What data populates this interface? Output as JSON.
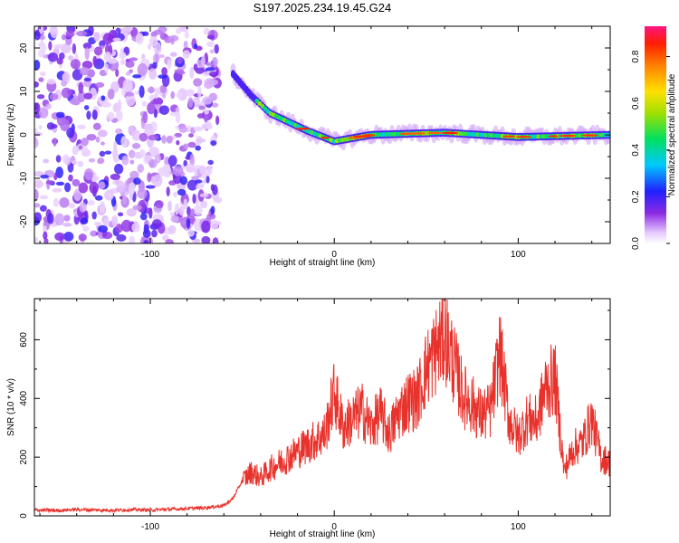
{
  "title": "S197.2025.234.19.45.G24",
  "colors": {
    "snr_line": "#e8322c",
    "axis": "#000000",
    "background": "#ffffff"
  },
  "chart_data": [
    {
      "type": "heatmap",
      "name": "spectrogram",
      "xlabel": "Height of straight line (km)",
      "ylabel": "Frequency (Hz)",
      "xlim": [
        -163,
        150
      ],
      "ylim": [
        -25,
        25
      ],
      "xticks": [
        -100,
        0,
        100
      ],
      "yticks": [
        -20,
        -10,
        0,
        10,
        20
      ],
      "xtick_labels": [
        "-100",
        "0",
        "100"
      ],
      "ytick_labels": [
        "-20",
        "-10",
        "0",
        "10",
        "20"
      ],
      "colorbar": {
        "label": "Normalized spectral amplitude",
        "range": [
          0.0,
          0.93
        ],
        "ticks": [
          0.0,
          0.2,
          0.4,
          0.6,
          0.8
        ],
        "tick_labels": [
          "0.0",
          "0.2",
          "0.4",
          "0.6",
          "0.8"
        ]
      },
      "ridge": [
        {
          "x": -55,
          "freq": 14
        },
        {
          "x": -45,
          "freq": 9
        },
        {
          "x": -35,
          "freq": 5
        },
        {
          "x": -25,
          "freq": 3
        },
        {
          "x": -15,
          "freq": 1
        },
        {
          "x": 0,
          "freq": -1.5
        },
        {
          "x": 20,
          "freq": 0
        },
        {
          "x": 60,
          "freq": 0.5
        },
        {
          "x": 100,
          "freq": -0.5
        },
        {
          "x": 150,
          "freq": 0
        }
      ]
    },
    {
      "type": "line",
      "name": "snr",
      "xlabel": "Height of straight line (km)",
      "ylabel": "SNR (10 * v/v)",
      "xlim": [
        -163,
        150
      ],
      "ylim": [
        0,
        740
      ],
      "xticks": [
        -100,
        0,
        100
      ],
      "yticks": [
        0,
        200,
        400,
        600
      ],
      "xtick_labels": [
        "-100",
        "0",
        "100"
      ],
      "ytick_labels": [
        "0",
        "200",
        "400",
        "600"
      ],
      "series": [
        {
          "name": "SNR",
          "x": [
            -163,
            -150,
            -140,
            -130,
            -120,
            -110,
            -100,
            -90,
            -80,
            -70,
            -60,
            -55,
            -50,
            -45,
            -40,
            -35,
            -30,
            -25,
            -20,
            -15,
            -10,
            -5,
            0,
            5,
            10,
            15,
            20,
            25,
            30,
            35,
            40,
            45,
            50,
            55,
            60,
            65,
            70,
            75,
            80,
            85,
            90,
            95,
            100,
            105,
            110,
            115,
            120,
            125,
            130,
            135,
            140,
            145,
            150
          ],
          "y": [
            20,
            18,
            22,
            20,
            19,
            21,
            20,
            22,
            25,
            28,
            35,
            60,
            120,
            150,
            130,
            160,
            180,
            200,
            220,
            240,
            260,
            280,
            420,
            300,
            330,
            360,
            300,
            350,
            280,
            350,
            390,
            400,
            500,
            560,
            620,
            520,
            410,
            380,
            340,
            360,
            560,
            330,
            270,
            330,
            320,
            440,
            470,
            150,
            230,
            250,
            330,
            200,
            180
          ]
        }
      ]
    }
  ]
}
